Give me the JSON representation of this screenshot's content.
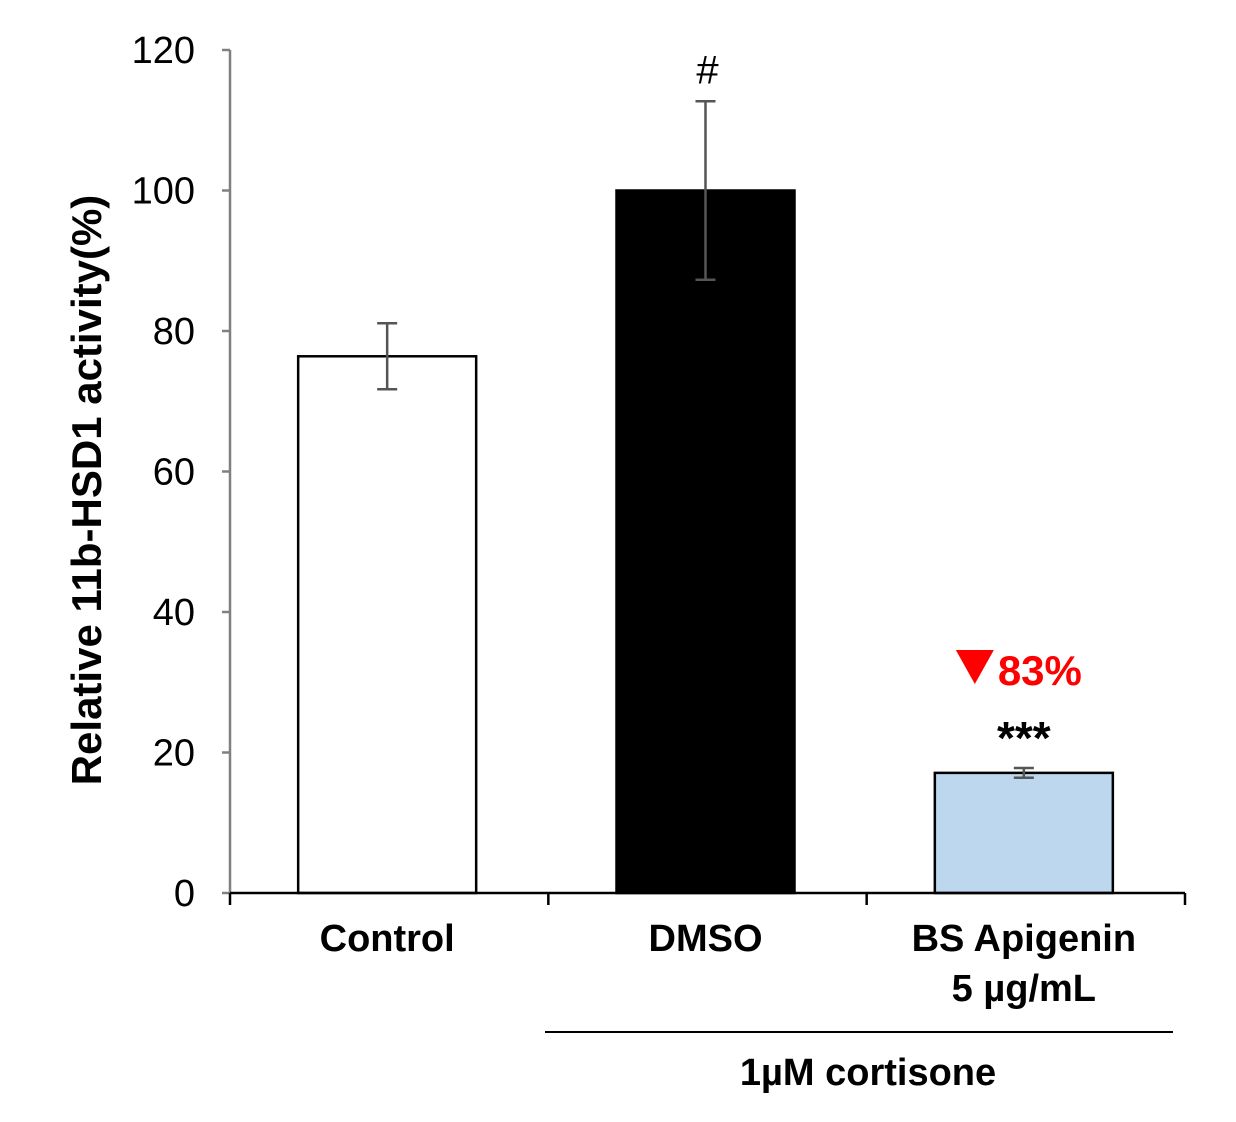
{
  "chart_data": {
    "type": "bar",
    "title": "",
    "xlabel": "",
    "ylabel": "Relative 11b-HSD1 activity(%)",
    "ylim": [
      0,
      120
    ],
    "yticks": [
      0,
      20,
      40,
      60,
      80,
      100,
      120
    ],
    "grid": false,
    "categories": [
      {
        "lines": [
          "Control"
        ]
      },
      {
        "lines": [
          "DMSO"
        ]
      },
      {
        "lines": [
          "BS Apigenin",
          "5 µg/mL"
        ]
      }
    ],
    "values": [
      76.4,
      100,
      17.1
    ],
    "errors": [
      4.7,
      12.7,
      0.7
    ],
    "colors": [
      "#ffffff",
      "#000000",
      "#bdd7ee"
    ],
    "annotations": [
      {
        "category": 1,
        "text": "#",
        "color": "#000000"
      },
      {
        "category": 2,
        "text": "***",
        "color": "#000000"
      },
      {
        "category": 2,
        "text": "83%",
        "marker": "down-triangle",
        "color": "#ff0000"
      }
    ],
    "group_label": {
      "text": "1µM cortisone",
      "categories": [
        1,
        2
      ]
    }
  }
}
